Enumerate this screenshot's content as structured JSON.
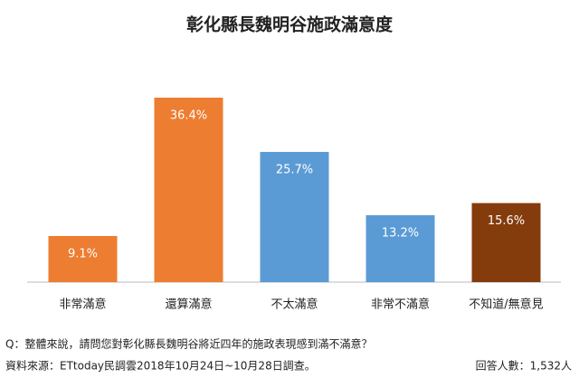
{
  "chart_data": {
    "type": "bar",
    "title": "彰化縣長魏明谷施政滿意度",
    "categories": [
      "非常滿意",
      "還算滿意",
      "不太滿意",
      "非常不滿意",
      "不知道/無意見"
    ],
    "values": [
      9.1,
      36.4,
      25.7,
      13.2,
      15.6
    ],
    "value_labels": [
      "9.1%",
      "36.4%",
      "25.7%",
      "13.2%",
      "15.6%"
    ],
    "colors": [
      "#ED7D31",
      "#ED7D31",
      "#5B9BD5",
      "#5B9BD5",
      "#843C0C"
    ],
    "question": "Q：整體來說，請問您對彰化縣長魏明谷將近四年的施政表現感到滿不滿意？",
    "source": "資料來源：ETtoday民調雲2018年10月24日~10月28日調查。",
    "respondents": "回答人數：1,532人"
  }
}
